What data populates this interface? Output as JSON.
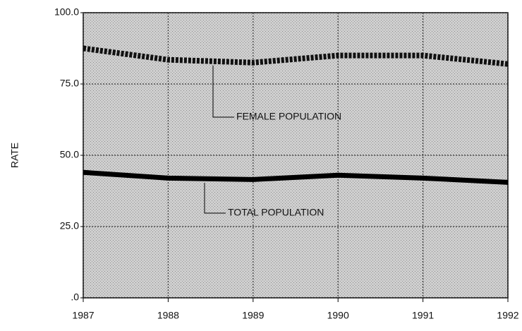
{
  "chart_data": {
    "type": "line",
    "y_label": "RATE",
    "x": [
      1987,
      1988,
      1989,
      1990,
      1991,
      1992
    ],
    "xlim": [
      1987,
      1992
    ],
    "xticks": [
      1987,
      1988,
      1989,
      1990,
      1991,
      1992
    ],
    "ylim": [
      0,
      100
    ],
    "yticks": [
      {
        "value": 0,
        "label": ".0"
      },
      {
        "value": 25,
        "label": "25.0"
      },
      {
        "value": 50,
        "label": "50.0"
      },
      {
        "value": 75,
        "label": "75.0"
      },
      {
        "value": 100,
        "label": "100.0"
      }
    ],
    "grid": true,
    "series": [
      {
        "name": "FEMALE POPULATION",
        "color": "#111111",
        "style": "dotted",
        "values": [
          87.5,
          83.5,
          82.5,
          85,
          85,
          82
        ]
      },
      {
        "name": "TOTAL POPULATION",
        "color": "#000000",
        "style": "solid",
        "values": [
          44,
          42,
          41.5,
          43,
          42,
          40.5
        ]
      }
    ]
  }
}
